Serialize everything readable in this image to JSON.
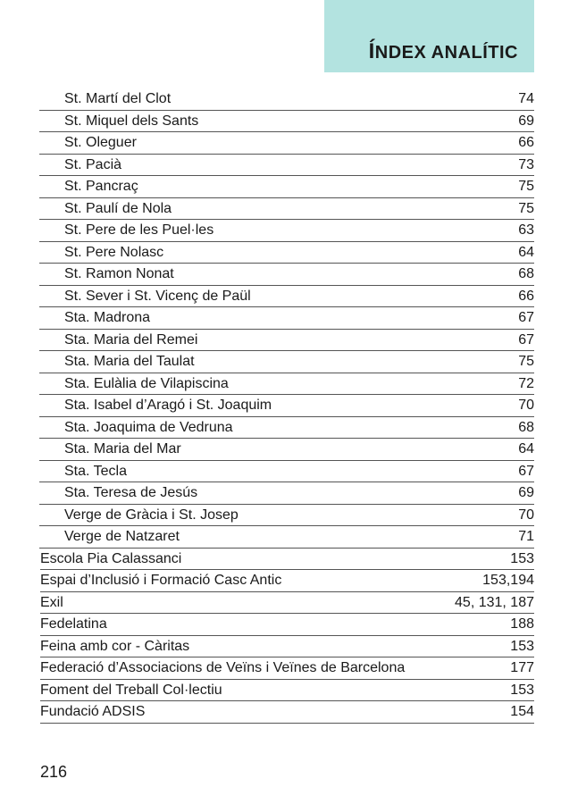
{
  "header": {
    "title_first": "Í",
    "title_rest": "NDEX ANALÍTIC"
  },
  "entries": [
    {
      "term": "St. Martí del Clot",
      "pages": "74",
      "indent": true
    },
    {
      "term": "St. Miquel dels Sants",
      "pages": "69",
      "indent": true
    },
    {
      "term": "St. Oleguer",
      "pages": "66",
      "indent": true
    },
    {
      "term": "St. Pacià",
      "pages": "73",
      "indent": true
    },
    {
      "term": "St. Pancraç",
      "pages": "75",
      "indent": true
    },
    {
      "term": "St. Paulí de Nola",
      "pages": "75",
      "indent": true
    },
    {
      "term": "St. Pere de les Puel·les",
      "pages": "63",
      "indent": true
    },
    {
      "term": "St. Pere Nolasc",
      "pages": "64",
      "indent": true
    },
    {
      "term": "St. Ramon Nonat",
      "pages": "68",
      "indent": true
    },
    {
      "term": "St. Sever i St. Vicenç de Paül",
      "pages": "66",
      "indent": true
    },
    {
      "term": "Sta. Madrona",
      "pages": "67",
      "indent": true
    },
    {
      "term": "Sta. Maria del Remei",
      "pages": "67",
      "indent": true
    },
    {
      "term": "Sta. Maria del Taulat",
      "pages": "75",
      "indent": true
    },
    {
      "term": "Sta. Eulàlia de Vilapiscina",
      "pages": "72",
      "indent": true
    },
    {
      "term": "Sta. Isabel d’Aragó i St. Joaquim",
      "pages": "70",
      "indent": true
    },
    {
      "term": "Sta. Joaquima de Vedruna",
      "pages": "68",
      "indent": true
    },
    {
      "term": "Sta. Maria del Mar",
      "pages": "64",
      "indent": true
    },
    {
      "term": "Sta. Tecla",
      "pages": "67",
      "indent": true
    },
    {
      "term": "Sta. Teresa de Jesús",
      "pages": "69",
      "indent": true
    },
    {
      "term": "Verge de Gràcia i St. Josep",
      "pages": "70",
      "indent": true
    },
    {
      "term": "Verge de Natzaret",
      "pages": "71",
      "indent": true
    },
    {
      "term": "Escola Pia Calassanci",
      "pages": "153",
      "indent": false
    },
    {
      "term": "Espai d’Inclusió i Formació Casc Antic",
      "pages": "153,194",
      "indent": false
    },
    {
      "term": "Exil",
      "pages": "45, 131, 187",
      "indent": false
    },
    {
      "term": "Fedelatina",
      "pages": "188",
      "indent": false
    },
    {
      "term": "Feina amb cor - Càritas",
      "pages": "153",
      "indent": false
    },
    {
      "term": "Federació d’Associacions de Veïns i Veïnes de Barcelona",
      "pages": "177",
      "indent": false
    },
    {
      "term": "Foment del Treball Col·lectiu",
      "pages": "153",
      "indent": false
    },
    {
      "term": "Fundació ADSIS",
      "pages": "154",
      "indent": false
    }
  ],
  "footer": {
    "page_number": "216"
  }
}
